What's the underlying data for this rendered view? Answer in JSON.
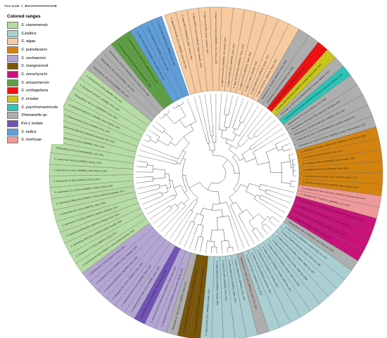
{
  "scale": {
    "label": "Tree scale: 1"
  },
  "legend": {
    "title": "Colored ranges",
    "items": [
      {
        "key": "vaz",
        "label": "S. xiamenensis",
        "color": "#b5dca4"
      },
      {
        "key": "bal",
        "label": "S.baltica",
        "color": "#a9cfd3"
      },
      {
        "key": "alg",
        "label": "S. algae",
        "color": "#f7cb9f"
      },
      {
        "key": "put",
        "label": "S. putrefaciens",
        "color": "#d3840f"
      },
      {
        "key": "seo",
        "label": "S. seohaensis",
        "color": "#b4a6d4"
      },
      {
        "key": "man",
        "label": "S. mangrovisoli",
        "color": "#7a5608"
      },
      {
        "key": "onc",
        "label": "S. oncorhynchi",
        "color": "#c8127a"
      },
      {
        "key": "ama",
        "label": "S. amazonensis",
        "color": "#5f9f44"
      },
      {
        "key": "sch",
        "label": "S. schlegeliana",
        "color": "#ee1111"
      },
      {
        "key": "ins",
        "label": "S. insulae",
        "color": "#c8c51d"
      },
      {
        "key": "psy",
        "label": "S. psychromarinicola",
        "color": "#2cc4b8"
      },
      {
        "key": "she",
        "label": "Shewanella sp.",
        "color": "#aeaeae"
      },
      {
        "key": "koi",
        "label": "Koi-1 isolate",
        "color": "#7153b8"
      },
      {
        "key": "ind",
        "label": "S. indica",
        "color": "#5f9ed9"
      },
      {
        "key": "mor",
        "label": "S. morhuae",
        "color": "#ef9a9a"
      }
    ]
  },
  "ring": [
    {
      "range": "alg",
      "labels": [
        "S. algae ARS-IVD-001 (GCA_0000000), China: fish 2016",
        "S. algae M107 (CP000014), Japan: marine, 2015",
        "S. algae MARS 14 (GCA_0000001), Spain: seawater, 2015",
        "S. algae CCUG 4043, Spain: seawater, 2015",
        "S. algae CLS-A-V1 (GCA_0000004), USA: clinical, 2015",
        "S. algae KC-B1 (GCA_0000006), USA: clinical, 2015",
        "S. algae OTHER (GCA_0000009), China, 2016",
        "S. algae A9-0030 (GCA_0000010), China, 2018",
        "S. algae 3T (GCA_0000012), Spain, 2019",
        "S. algae T1 Spain: seawater, 2015",
        "S. algae Ta38 (GCA_0000013), Taiwan, 2014",
        "S. algae Ta33 (GCA_0000014), Taiwan, 2014"
      ]
    },
    {
      "range": "she",
      "labels": [
        "Shewanella sp. A6 (GCA_0000021), China, 2018",
        "Shewanella sp. ANA-3 (CP000469), USA, 2006"
      ]
    },
    {
      "range": "sch",
      "labels": [
        "S. schlegeliana CCTCC (GCA_0000022), China, 2020"
      ]
    },
    {
      "range": "ins",
      "labels": [
        "S. insulae JBTF-M18 (GCA_0000023), Australia: Pacific oyster, 2015"
      ]
    },
    {
      "range": "she",
      "labels": [
        "Shewanella sp. NFH1 (JAJNUB000000000), Portugal: seawater, 2014"
      ]
    },
    {
      "range": "psy",
      "labels": [
        "S. psychromarinicola M-Rt1 (CP034073), Antarctica: Deep-sea sediment, 2016"
      ]
    },
    {
      "range": "she",
      "labels": [
        "Shewanella sp. PAJ (GCA_0000025), USA, 2019",
        "Shewanella sp. HA (CP017275), Antarctica: Red algae, 2017",
        "Shewanella sp. 10N.286.45.B9 (GCA_0000027), USA, 2018",
        "Shewanella sp. CAL_21 (PXRP000000000), Sweden: Oyster, 2015",
        "Shewanella sp. UCD-KL21 (GCA_0000030), Norway: Sand sediment, 2015"
      ]
    },
    {
      "range": "put",
      "labels": [
        "S. putrefaciens CCGMCC 1.6514 (GCA_0000031), China: Marine, 2016",
        "S. putrefaciens 200 (CP002767), USA, 2011",
        "S. putrefaciens CN-32 (CP000681), USA: Nuclear, 2007",
        "S. putrefaciens WS13 (CP028435), China, 2018",
        "S. putrefaciens JCM 20190 (GCA_0000035), Japan, 2014",
        "S. putrefaciens SA70 (GCA_0000036), Italy: Seafood, 2015"
      ]
    },
    {
      "range": "mor",
      "labels": [
        "S. morhuae ATCC BAA-1205 (GCA_0000037), Denmark: Cod, 2016",
        "S. morhuae CECT 7128 (GCA_0000038), USA, 2018"
      ]
    },
    {
      "range": "onc",
      "labels": [
        "S. oncorhynchi T1-1 (GCA_0000039), South Korea: Rainbow trout, 2020",
        "S. oncorhynchi S39 (GCA_0000040), USA: Salmonid, 2016",
        "S. oncorhynchi CCUG 50908 (GCA_0000041), China, 2018",
        "S. oncorhynchi M5 (GCA_0000042), Italy, 2019"
      ]
    },
    {
      "range": "she",
      "labels": [
        "Shewanella sp. MR-4 (CP000446), USA: Black sea, 2006"
      ]
    },
    {
      "range": "bal",
      "labels": [
        "S. baltica OS155 (CP000563), Sweden: Baltic sea, 2007",
        "S. baltica OS185 (CP000753), Sweden: Baltic sea, 2007",
        "S. baltica OS195 (CP000891), Sweden: Baltic sea, 2007",
        "S. baltica OS223 (CP001252), Sweden: Baltic sea, 2008",
        "S. baltica OS678 (CP002383), Sweden: Baltic sea, 2010",
        "S. baltica OS117 (CP002811), Sweden: Baltic sea, 2011",
        "S. baltica BA175 (CP002767), Sweden, 2011",
        "S. baltica 128 (GCA_0000051), Denmark, 2014",
        "S. baltica CW2 (GCA_0000052), China, 2016"
      ]
    },
    {
      "range": "she",
      "labels": [
        "Shewanella sp. Pdp11 (GCA_0000053), Spain: Fish, 2016"
      ]
    },
    {
      "range": "bal",
      "labels": [
        "S. baltica SDB3 (GCA_0000054), China, 2017",
        "S. baltica SB39 (GCA_0000055), Japan, 2018",
        "S. baltica ZS (GCA_0000056), China, 2019",
        "S. baltica KB30 (GCA_0000057), Norway, 2019",
        "S. baltica OS625 (GCA_0000058), Sweden, 2010"
      ]
    },
    {
      "range": "man",
      "labels": [
        "S. mangrovisoli W-TNS8 (GCA_0000059), China: Mangrove soil, 2020",
        "S. mangrovisoli MSW-2 (GCA_0000060), China: Mangrove soil, 2021"
      ]
    },
    {
      "range": "she",
      "labels": [
        "Shewanella sp. YLB-06 (GCA_0000061), China, 2021"
      ]
    },
    {
      "range": "seo",
      "labels": [
        "S. seohaensis S7-3 (GCA_0000062), South Korea: Tidal flat, 2015",
        "S. seohaensis KCTC 23556 (GCA_0000063), South Korea, 2016"
      ]
    },
    {
      "range": "koi",
      "labels": [
        "Shewanella sp. Koi-1 (CP000000), Turkey: Koi carp, 2021"
      ]
    },
    {
      "range": "seo",
      "labels": [
        "S. seohaensis JCM 17801 (GCA_0000065), Japan, 2015",
        "S. seohaensis MTB-52 (GCA_0000066), China, 2018",
        "S. seohaensis ZA-7 (GCA_0000067), China, 2019",
        "S. seohaensis GD03 (GCA_0000068), China, 2020",
        "S. seohaensis F1 (GCA_0000069), China: Sediment, 2021",
        "S. seohaensis W-7 (GCA_0000070), China, 2021"
      ]
    },
    {
      "range": "vaz",
      "labels": [
        "S. xiamenensis 4D (GCA_0000071), China: Marine sediment, 2016",
        "S. xiamenensis T17 (GCA_0000072), China, 2017",
        "S. xiamenensis Sh87 (GCA_0000073), Brazil: Hospital, 2018",
        "S. xiamenensis GP08 (GCA_0000074), Portugal: River, 2018",
        "S. xiamenensis 105 (GCA_0000075), Sweden: Seawater, 2019",
        "S. xiamenensis AH-1 (GCA_0000076), Japan, 2019",
        "S. xiamenensis ZBWJ (GCA_0000077), China: Hospital wastewater, 2019",
        "S. xiamenensis T17_E (GCA_0000078), Turkey: Clinical, 2020",
        "S. xiamenensis Y9 (GCA_0000079), China, 2020",
        "S. xiamenensis S1 (GCA_0000080), India: Effluent, 2020",
        "S. xiamenensis 7B (GCA_0000081), Nigeria, 2020",
        "*Shewanella sp. Sh-1 (LYUD00000000), USA, 2021",
        "S. xiamenensis HZ-2 (GCA_0000083), China, 2021",
        "S. xiamenensis 2SB (GCA_0000084), Argentina: River, 2021",
        "S. xiamenensis SH11 (GCA_0000085), China, 2021",
        "S. xiamenensis 16B (GCA_0000086), China: Hospital, 2022",
        "*Shewanella sp. WI-1 (LYYG00000000), China, 2022",
        "S. xiamenensis Z15 (GCA_0000088), China, 2022",
        "S. xiamenensis A3 (GCA_0000089), USA, 2022"
      ]
    },
    {
      "range": "she",
      "labels": [
        "Shewanella sp. SE-1 (GCA_0000090), USA, 2017",
        "Shewanella sp. SE-2 (GCA_0000091), USA, 2017",
        "Shewanella sp. W3-18-1 (CP000503), USA: Pacific ocean, 2006"
      ]
    },
    {
      "range": "ama",
      "labels": [
        "S. amazonensis SB2B (CP000507), Brazil: Amazon, 2006",
        "S. amazonensis CECT 5400 (GCA_0000094), Brazil, 2019"
      ]
    },
    {
      "range": "ind",
      "labels": [
        "S. indica KJW27 (GCA_0000095), India: Arabian sea, 2014",
        "S. indica YQH10 (GCA_0000096), China: Sea, 2019",
        "S. indica JCM 16990 (GCA_0000097), India, 2021"
      ]
    }
  ]
}
